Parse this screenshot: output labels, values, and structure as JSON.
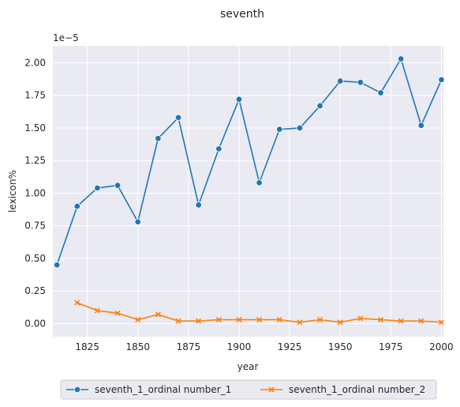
{
  "chart_data": {
    "type": "line",
    "title": "seventh",
    "xlabel": "year",
    "ylabel": "lexicon%",
    "y_scale_label": "1e−5",
    "xlim": [
      1808,
      2001
    ],
    "ylim": [
      -0.1,
      2.13
    ],
    "x_ticks": [
      1825,
      1850,
      1875,
      1900,
      1925,
      1950,
      1975,
      2000
    ],
    "y_ticks": [
      0.0,
      0.25,
      0.5,
      0.75,
      1.0,
      1.25,
      1.5,
      1.75,
      2.0
    ],
    "y_tick_labels": [
      "0.00",
      "0.25",
      "0.50",
      "0.75",
      "1.00",
      "1.25",
      "1.50",
      "1.75",
      "2.00"
    ],
    "grid": true,
    "legend_position": "bottom-center",
    "series": [
      {
        "name": "seventh_1_ordinal number_1",
        "color": "#1f77b4",
        "marker": "circle",
        "x": [
          1810,
          1820,
          1830,
          1840,
          1850,
          1860,
          1870,
          1880,
          1890,
          1900,
          1910,
          1920,
          1930,
          1940,
          1950,
          1960,
          1970,
          1980,
          1990,
          2000
        ],
        "values": [
          0.45,
          0.9,
          1.04,
          1.06,
          0.78,
          1.42,
          1.58,
          0.91,
          1.34,
          1.72,
          1.08,
          1.49,
          1.5,
          1.67,
          1.86,
          1.85,
          1.77,
          2.03,
          1.52,
          1.87
        ]
      },
      {
        "name": "seventh_1_ordinal number_2",
        "color": "#ff7f0e",
        "marker": "x",
        "x": [
          1820,
          1830,
          1840,
          1850,
          1860,
          1870,
          1880,
          1890,
          1900,
          1910,
          1920,
          1930,
          1940,
          1950,
          1960,
          1970,
          1980,
          1990,
          2000
        ],
        "values": [
          0.16,
          0.1,
          0.08,
          0.03,
          0.07,
          0.02,
          0.02,
          0.03,
          0.03,
          0.03,
          0.03,
          0.01,
          0.03,
          0.01,
          0.04,
          0.03,
          0.02,
          0.02,
          0.01
        ]
      }
    ]
  }
}
